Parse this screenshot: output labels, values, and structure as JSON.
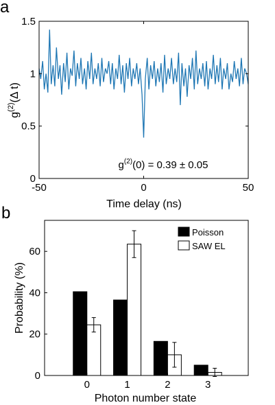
{
  "panel_labels": {
    "a": "a",
    "b": "b"
  },
  "chart_data": [
    {
      "type": "line",
      "xlabel": "Time delay (ns)",
      "ylabel_main": "g",
      "ylabel_sup": "(2)",
      "ylabel_args": "(Δ t)",
      "xlim": [
        -50,
        50
      ],
      "ylim": [
        0,
        1.5
      ],
      "xticks": [
        -50,
        0,
        50
      ],
      "xtick_labels": [
        "-50",
        "0",
        "50"
      ],
      "yticks": [
        0,
        0.5,
        1,
        1.5
      ],
      "ytick_labels": [
        "0",
        "0.5",
        "1",
        "1.5"
      ],
      "annotation": {
        "main": "g",
        "sup": "(2)",
        "rest": "(0) = 0.39 ± 0.05"
      },
      "line_color": "#1f77b4",
      "series": [
        {
          "x": [
            -50,
            -49.2,
            -48.3,
            -47.5,
            -46.7,
            -45.8,
            -45,
            -44.2,
            -43.3,
            -42.5,
            -41.7,
            -40.8,
            -40,
            -39.2,
            -38.3,
            -37.5,
            -36.7,
            -35.8,
            -35,
            -34.2,
            -33.3,
            -32.5,
            -31.7,
            -30.8,
            -30,
            -29.2,
            -28.3,
            -27.5,
            -26.7,
            -25.8,
            -25,
            -24.2,
            -23.3,
            -22.5,
            -21.7,
            -20.8,
            -20,
            -19.2,
            -18.3,
            -17.5,
            -16.7,
            -15.8,
            -15,
            -14.2,
            -13.3,
            -12.5,
            -11.7,
            -10.8,
            -10,
            -9.2,
            -8.3,
            -7.5,
            -6.7,
            -5.8,
            -5,
            -4.2,
            -3.3,
            -2.5,
            -1.7,
            -0.8,
            0,
            0.8,
            1.7,
            2.5,
            3.3,
            4.2,
            5,
            5.8,
            6.7,
            7.5,
            8.3,
            9.2,
            10,
            10.8,
            11.7,
            12.5,
            13.3,
            14.2,
            15,
            15.8,
            16.7,
            17.5,
            18.3,
            19.2,
            20,
            20.8,
            21.7,
            22.5,
            23.3,
            24.2,
            25,
            25.8,
            26.7,
            27.5,
            28.3,
            29.2,
            30,
            30.8,
            31.7,
            32.5,
            33.3,
            34.2,
            35,
            35.8,
            36.7,
            37.5,
            38.3,
            39.2,
            40,
            40.8,
            41.7,
            42.5,
            43.3,
            44.2,
            45,
            45.8,
            46.7,
            47.5,
            48.3,
            49.2,
            50
          ],
          "y": [
            1.05,
            0.95,
            1.12,
            0.85,
            1.0,
            0.82,
            1.42,
            0.9,
            1.08,
            0.88,
            1.25,
            0.95,
            1.08,
            0.8,
            1.1,
            0.92,
            1.2,
            0.85,
            1.05,
            0.98,
            1.22,
            0.88,
            1.1,
            0.95,
            1.15,
            0.9,
            1.05,
            0.85,
            1.12,
            0.95,
            1.2,
            0.9,
            1.05,
            0.95,
            1.1,
            0.88,
            1.15,
            0.92,
            1.05,
            1.0,
            1.12,
            0.9,
            1.1,
            0.85,
            1.05,
            0.95,
            1.18,
            0.9,
            1.08,
            0.82,
            1.1,
            0.95,
            1.15,
            0.88,
            1.05,
            0.95,
            1.1,
            0.9,
            1.05,
            0.8,
            0.39,
            0.95,
            1.15,
            0.85,
            1.08,
            0.95,
            1.12,
            0.88,
            1.05,
            0.92,
            1.1,
            0.82,
            1.18,
            0.9,
            1.05,
            0.95,
            1.15,
            0.9,
            1.05,
            0.92,
            1.2,
            0.7,
            1.1,
            0.88,
            1.05,
            0.78,
            1.08,
            0.95,
            1.15,
            0.85,
            1.22,
            0.9,
            1.05,
            0.95,
            1.1,
            0.88,
            1.12,
            0.85,
            1.05,
            0.95,
            1.18,
            0.9,
            1.08,
            0.92,
            1.15,
            0.85,
            1.05,
            0.95,
            1.1,
            0.85,
            1.0,
            0.92,
            1.12,
            0.95,
            1.05,
            0.88,
            1.15,
            0.9,
            1.05,
            1.0,
            0.9
          ]
        }
      ]
    },
    {
      "type": "bar",
      "xlabel": "Photon number state",
      "ylabel": "Probability (%)",
      "categories": [
        "0",
        "1",
        "2",
        "3"
      ],
      "ylim": [
        0,
        75
      ],
      "yticks": [
        0,
        20,
        40,
        60
      ],
      "ytick_labels": [
        "0",
        "20",
        "40",
        "60"
      ],
      "legend_position": "top-right",
      "series": [
        {
          "name": "Poisson",
          "values": [
            40.5,
            36.5,
            16.5,
            5
          ],
          "fill": "#000000"
        },
        {
          "name": "SAW EL",
          "values": [
            24.5,
            63.5,
            10,
            1.5
          ],
          "errors": [
            3.5,
            6.5,
            6,
            2
          ],
          "fill": "#ffffff"
        }
      ]
    }
  ]
}
